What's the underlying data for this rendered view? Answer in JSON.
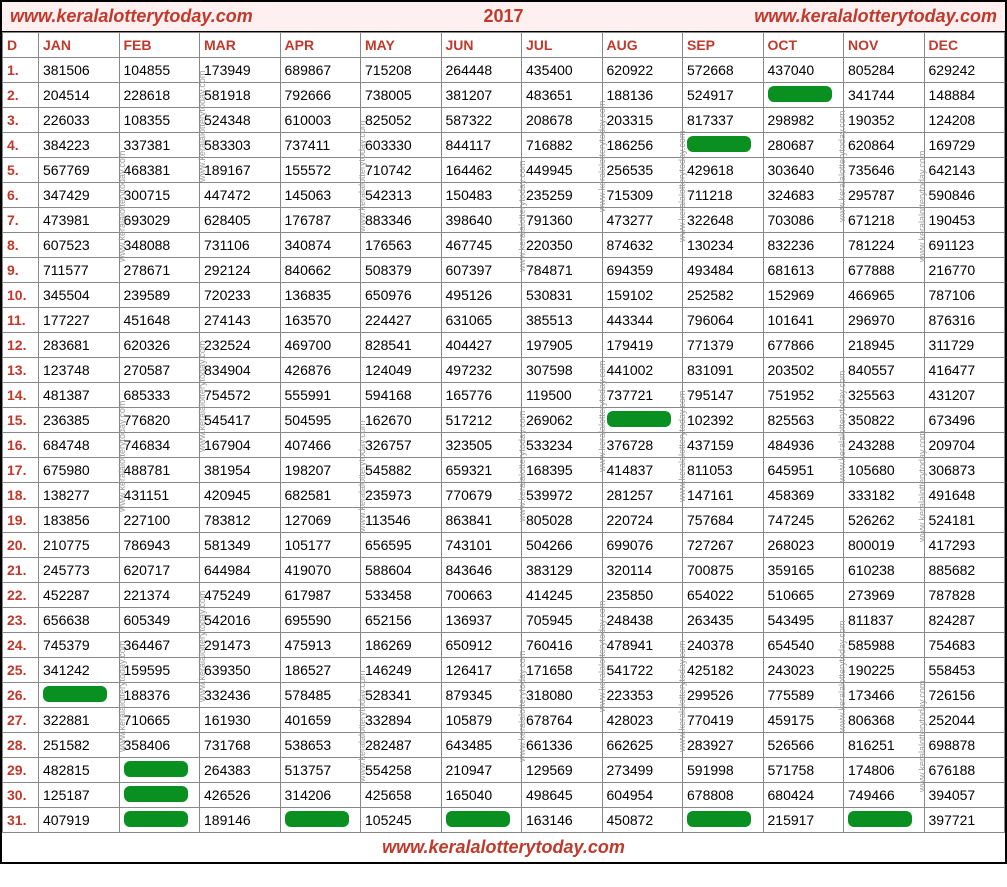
{
  "header": {
    "url": "www.keralalotterytoday.com",
    "year": "2017"
  },
  "watermark": "www.keralalotterytoday.com",
  "columns": [
    "D",
    "JAN",
    "FEB",
    "MAR",
    "APR",
    "MAY",
    "JUN",
    "JUL",
    "AUG",
    "SEP",
    "OCT",
    "NOV",
    "DEC"
  ],
  "green_cells": {
    "1": [],
    "2": [
      10
    ],
    "3": [],
    "4": [
      9
    ],
    "5": [],
    "6": [],
    "7": [],
    "8": [],
    "9": [],
    "10": [],
    "11": [],
    "12": [],
    "13": [],
    "14": [],
    "15": [
      8
    ],
    "16": [],
    "17": [],
    "18": [],
    "19": [],
    "20": [],
    "21": [],
    "22": [],
    "23": [],
    "24": [],
    "25": [],
    "26": [
      1
    ],
    "27": [],
    "28": [],
    "29": [
      2
    ],
    "30": [
      2
    ],
    "31": [
      2,
      4,
      6,
      9,
      11
    ]
  },
  "rows": {
    "1": [
      "381506",
      "104855",
      "173949",
      "689867",
      "715208",
      "264448",
      "435400",
      "620922",
      "572668",
      "437040",
      "805284",
      "629242"
    ],
    "2": [
      "204514",
      "228618",
      "581918",
      "792666",
      "738005",
      "381207",
      "483651",
      "188136",
      "524917",
      "",
      "341744",
      "148884"
    ],
    "3": [
      "226033",
      "108355",
      "524348",
      "610003",
      "825052",
      "587322",
      "208678",
      "203315",
      "817337",
      "298982",
      "190352",
      "124208"
    ],
    "4": [
      "384223",
      "337381",
      "583303",
      "737411",
      "603330",
      "844117",
      "716882",
      "186256",
      "",
      "280687",
      "620864",
      "169729"
    ],
    "5": [
      "567769",
      "468381",
      "189167",
      "155572",
      "710742",
      "164462",
      "449945",
      "256535",
      "429618",
      "303640",
      "735646",
      "642143"
    ],
    "6": [
      "347429",
      "300715",
      "447472",
      "145063",
      "542313",
      "150483",
      "235259",
      "715309",
      "711218",
      "324683",
      "295787",
      "590846"
    ],
    "7": [
      "473981",
      "693029",
      "628405",
      "176787",
      "883346",
      "398640",
      "791360",
      "473277",
      "322648",
      "703086",
      "671218",
      "190453"
    ],
    "8": [
      "607523",
      "348088",
      "731106",
      "340874",
      "176563",
      "467745",
      "220350",
      "874632",
      "130234",
      "832236",
      "781224",
      "691123"
    ],
    "9": [
      "711577",
      "278671",
      "292124",
      "840662",
      "508379",
      "607397",
      "784871",
      "694359",
      "493484",
      "681613",
      "677888",
      "216770"
    ],
    "10": [
      "345504",
      "239589",
      "720233",
      "136835",
      "650976",
      "495126",
      "530831",
      "159102",
      "252582",
      "152969",
      "466965",
      "787106"
    ],
    "11": [
      "177227",
      "451648",
      "274143",
      "163570",
      "224427",
      "631065",
      "385513",
      "443344",
      "796064",
      "101641",
      "296970",
      "876316"
    ],
    "12": [
      "283681",
      "620326",
      "232524",
      "469700",
      "828541",
      "404427",
      "197905",
      "179419",
      "771379",
      "677866",
      "218945",
      "311729"
    ],
    "13": [
      "123748",
      "270587",
      "834904",
      "426876",
      "124049",
      "497232",
      "307598",
      "441002",
      "831091",
      "203502",
      "840557",
      "416477"
    ],
    "14": [
      "481387",
      "685333",
      "754572",
      "555991",
      "594168",
      "165776",
      "119500",
      "737721",
      "795147",
      "751952",
      "325563",
      "431207"
    ],
    "15": [
      "236385",
      "776820",
      "545417",
      "504595",
      "162670",
      "517212",
      "269062",
      "",
      "102392",
      "825563",
      "350822",
      "673496"
    ],
    "16": [
      "684748",
      "746834",
      "167904",
      "407466",
      "326757",
      "323505",
      "533234",
      "376728",
      "437159",
      "484936",
      "243288",
      "209704"
    ],
    "17": [
      "675980",
      "488781",
      "381954",
      "198207",
      "545882",
      "659321",
      "168395",
      "414837",
      "811053",
      "645951",
      "105680",
      "306873"
    ],
    "18": [
      "138277",
      "431151",
      "420945",
      "682581",
      "235973",
      "770679",
      "539972",
      "281257",
      "147161",
      "458369",
      "333182",
      "491648"
    ],
    "19": [
      "183856",
      "227100",
      "783812",
      "127069",
      "113546",
      "863841",
      "805028",
      "220724",
      "757684",
      "747245",
      "526262",
      "524181"
    ],
    "20": [
      "210775",
      "786943",
      "581349",
      "105177",
      "656595",
      "743101",
      "504266",
      "699076",
      "727267",
      "268023",
      "800019",
      "417293"
    ],
    "21": [
      "245773",
      "620717",
      "644984",
      "419070",
      "588604",
      "843646",
      "383129",
      "320114",
      "700875",
      "359165",
      "610238",
      "885682"
    ],
    "22": [
      "452287",
      "221374",
      "475249",
      "617987",
      "533458",
      "700663",
      "414245",
      "235850",
      "654022",
      "510665",
      "273969",
      "787828"
    ],
    "23": [
      "656638",
      "605349",
      "542016",
      "695590",
      "652156",
      "136937",
      "705945",
      "248438",
      "263435",
      "543495",
      "811837",
      "824287"
    ],
    "24": [
      "745379",
      "364467",
      "291473",
      "475913",
      "186269",
      "650912",
      "760416",
      "478941",
      "240378",
      "654540",
      "585988",
      "754683"
    ],
    "25": [
      "341242",
      "159595",
      "639350",
      "186527",
      "146249",
      "126417",
      "171658",
      "541722",
      "425182",
      "243023",
      "190225",
      "558453"
    ],
    "26": [
      "",
      "188376",
      "332436",
      "578485",
      "528341",
      "879345",
      "318080",
      "223353",
      "299526",
      "775589",
      "173466",
      "726156"
    ],
    "27": [
      "322881",
      "710665",
      "161930",
      "401659",
      "332894",
      "105879",
      "678764",
      "428023",
      "770419",
      "459175",
      "806368",
      "252044"
    ],
    "28": [
      "251582",
      "358406",
      "731768",
      "538653",
      "282487",
      "643485",
      "661336",
      "662625",
      "283927",
      "526566",
      "816251",
      "698878"
    ],
    "29": [
      "482815",
      "",
      "264383",
      "513757",
      "554258",
      "210947",
      "129569",
      "273499",
      "591998",
      "571758",
      "174806",
      "676188"
    ],
    "30": [
      "125187",
      "",
      "426526",
      "314206",
      "425658",
      "165040",
      "498645",
      "604954",
      "678808",
      "680424",
      "749466",
      "394057"
    ],
    "31": [
      "407919",
      "",
      "189146",
      "",
      "105245",
      "",
      "163146",
      "450872",
      "",
      "215917",
      "",
      "397721"
    ]
  },
  "colors": {
    "accent": "#c0392b",
    "green": "#0a9020",
    "header_bg": "#fef0f0",
    "border": "#888"
  }
}
